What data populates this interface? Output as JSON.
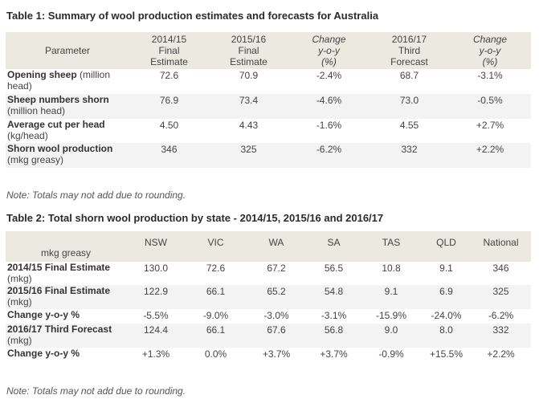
{
  "table1": {
    "title": "Table 1: Summary of wool production estimates and forecasts for Australia",
    "headers": [
      {
        "lines": [
          "Parameter"
        ],
        "italic": false
      },
      {
        "lines": [
          "2014/15",
          "Final",
          "Estimate"
        ],
        "italic": false
      },
      {
        "lines": [
          "2015/16",
          "Final",
          "Estimate"
        ],
        "italic": false
      },
      {
        "lines": [
          "Change",
          "y-o-y",
          "(%)"
        ],
        "italic": true
      },
      {
        "lines": [
          "2016/17",
          "Third",
          "Forecast"
        ],
        "italic": false
      },
      {
        "lines": [
          "Change",
          "y-o-y",
          "(%)"
        ],
        "italic": true
      }
    ],
    "rows": [
      {
        "label_bold": "Opening sheep",
        "label_rest": " (million head)",
        "values": [
          "72.6",
          "70.9",
          "-2.4%",
          "68.7",
          "-3.1%"
        ]
      },
      {
        "label_bold": "Sheep numbers shorn",
        "label_rest": " (million head)",
        "values": [
          "76.9",
          "73.4",
          "-4.6%",
          "73.0",
          "-0.5%"
        ]
      },
      {
        "label_bold": "Average cut per head",
        "label_rest": " (kg/head)",
        "values": [
          "4.50",
          "4.43",
          "-1.6%",
          "4.55",
          "+2.7%"
        ]
      },
      {
        "label_bold": "Shorn wool production",
        "label_rest": " (mkg greasy)",
        "values": [
          "346",
          "325",
          "-6.2%",
          "332",
          "+2.2%"
        ]
      }
    ],
    "note": "Note: Totals may not add due to rounding."
  },
  "table2": {
    "title": "Table 2: Total shorn wool production by state - 2014/15, 2015/16 and 2016/17",
    "headers": [
      "mkg greasy",
      "NSW",
      "VIC",
      "WA",
      "SA",
      "TAS",
      "QLD",
      "National"
    ],
    "rows": [
      {
        "label_bold": "2014/15 Final Estimate",
        "label_rest": " (mkg)",
        "values": [
          "130.0",
          "72.6",
          "67.2",
          "56.5",
          "10.8",
          "9.1",
          "346"
        ]
      },
      {
        "label_bold": "2015/16 Final Estimate",
        "label_rest": " (mkg)",
        "values": [
          "122.9",
          "66.1",
          "65.2",
          "54.8",
          "9.1",
          "6.9",
          "325"
        ]
      },
      {
        "label_bold": "Change y-o-y %",
        "label_rest": "",
        "values": [
          "-5.5%",
          "-9.0%",
          "-3.0%",
          "-3.1%",
          "-15.9%",
          "-24.0%",
          "-6.2%"
        ]
      },
      {
        "label_bold": "2016/17 Third Forecast",
        "label_rest": " (mkg)",
        "values": [
          "124.4",
          "66.1",
          "67.6",
          "56.8",
          "9.0",
          "8.0",
          "332"
        ]
      },
      {
        "label_bold": "Change y-o-y %",
        "label_rest": "",
        "values": [
          "+1.3%",
          "0.0%",
          "+3.7%",
          "+3.7%",
          "-0.9%",
          "+15.5%",
          "+2.2%"
        ]
      }
    ],
    "note": "Note: Totals may not add due to rounding."
  }
}
